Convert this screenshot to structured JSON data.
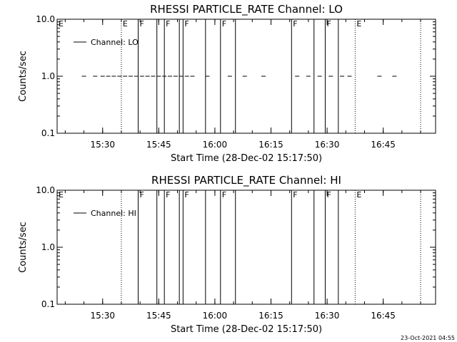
{
  "chart_data": [
    {
      "type": "line",
      "title": "RHESSI PARTICLE_RATE Channel: LO",
      "xlabel": "Start Time (28-Dec-02 15:17:50)",
      "ylabel": "Counts/sec",
      "yscale": "log",
      "ylim": [
        0.1,
        10.0
      ],
      "xlim": [
        "15:17:50",
        "16:59:00"
      ],
      "y_ticks": [
        "0.1",
        "1.0",
        "10.0"
      ],
      "x_ticks": [
        "15:30",
        "15:45",
        "16:00",
        "16:15",
        "16:30",
        "16:45"
      ],
      "grid": false,
      "legend": {
        "position": "top-left",
        "entries": [
          "Channel: LO"
        ]
      },
      "series": [
        {
          "name": "Channel: LO",
          "points": [
            {
              "x": "15:25:00",
              "y": 1.0
            },
            {
              "x": "15:28:00",
              "y": 1.0
            },
            {
              "x": "15:30:00",
              "y": 1.0
            },
            {
              "x": "15:31:30",
              "y": 1.0
            },
            {
              "x": "15:33:00",
              "y": 1.0
            },
            {
              "x": "15:34:30",
              "y": 1.0
            },
            {
              "x": "15:36:00",
              "y": 1.0
            },
            {
              "x": "15:37:30",
              "y": 1.0
            },
            {
              "x": "15:39:00",
              "y": 1.0
            },
            {
              "x": "15:40:30",
              "y": 1.0
            },
            {
              "x": "15:42:00",
              "y": 1.0
            },
            {
              "x": "15:43:30",
              "y": 1.0
            },
            {
              "x": "15:45:00",
              "y": 1.0
            },
            {
              "x": "15:46:30",
              "y": 1.0
            },
            {
              "x": "15:48:00",
              "y": 1.0
            },
            {
              "x": "15:49:30",
              "y": 1.0
            },
            {
              "x": "15:51:00",
              "y": 1.0
            },
            {
              "x": "15:52:30",
              "y": 1.0
            },
            {
              "x": "15:54:00",
              "y": 1.0
            },
            {
              "x": "15:58:00",
              "y": 1.0
            },
            {
              "x": "16:04:00",
              "y": 1.0
            },
            {
              "x": "16:08:00",
              "y": 1.0
            },
            {
              "x": "16:13:00",
              "y": 1.0
            },
            {
              "x": "16:22:00",
              "y": 1.0
            },
            {
              "x": "16:25:00",
              "y": 1.0
            },
            {
              "x": "16:28:00",
              "y": 1.0
            },
            {
              "x": "16:31:00",
              "y": 1.0
            },
            {
              "x": "16:34:00",
              "y": 1.0
            },
            {
              "x": "16:36:00",
              "y": 1.0
            },
            {
              "x": "16:44:00",
              "y": 1.0
            },
            {
              "x": "16:48:00",
              "y": 1.0
            }
          ]
        }
      ],
      "markers": [
        {
          "time": "15:35:00",
          "style": "dotted",
          "label": "E"
        },
        {
          "time": "15:39:30",
          "style": "solid",
          "label": "F"
        },
        {
          "time": "15:44:30",
          "style": "solid",
          "label": ""
        },
        {
          "time": "15:46:30",
          "style": "solid",
          "label": "F"
        },
        {
          "time": "15:50:30",
          "style": "solid",
          "label": ""
        },
        {
          "time": "15:51:30",
          "style": "solid",
          "label": "F"
        },
        {
          "time": "15:57:30",
          "style": "solid",
          "label": ""
        },
        {
          "time": "16:01:30",
          "style": "solid",
          "label": "F"
        },
        {
          "time": "16:05:30",
          "style": "solid",
          "label": ""
        },
        {
          "time": "16:20:30",
          "style": "solid",
          "label": "F"
        },
        {
          "time": "16:26:30",
          "style": "solid",
          "label": ""
        },
        {
          "time": "16:29:30",
          "style": "solid",
          "label": "F"
        },
        {
          "time": "16:33:00",
          "style": "solid",
          "label": ""
        },
        {
          "time": "16:37:30",
          "style": "dotted",
          "label": "E"
        },
        {
          "time": "16:55:00",
          "style": "dotted",
          "label": ""
        }
      ],
      "corner_label": "E"
    },
    {
      "type": "line",
      "title": "RHESSI PARTICLE_RATE Channel: HI",
      "xlabel": "Start Time (28-Dec-02 15:17:50)",
      "ylabel": "Counts/sec",
      "yscale": "log",
      "ylim": [
        0.1,
        10.0
      ],
      "xlim": [
        "15:17:50",
        "16:59:00"
      ],
      "y_ticks": [
        "0.1",
        "1.0",
        "10.0"
      ],
      "x_ticks": [
        "15:30",
        "15:45",
        "16:00",
        "16:15",
        "16:30",
        "16:45"
      ],
      "grid": false,
      "legend": {
        "position": "top-left",
        "entries": [
          "Channel: HI"
        ]
      },
      "series": [
        {
          "name": "Channel: HI",
          "points": []
        }
      ],
      "markers": [
        {
          "time": "15:35:00",
          "style": "dotted",
          "label": ""
        },
        {
          "time": "15:39:30",
          "style": "solid",
          "label": "F"
        },
        {
          "time": "15:44:30",
          "style": "solid",
          "label": ""
        },
        {
          "time": "15:46:30",
          "style": "solid",
          "label": "F"
        },
        {
          "time": "15:50:30",
          "style": "solid",
          "label": ""
        },
        {
          "time": "15:51:30",
          "style": "solid",
          "label": "F"
        },
        {
          "time": "15:57:30",
          "style": "solid",
          "label": ""
        },
        {
          "time": "16:01:30",
          "style": "solid",
          "label": "F"
        },
        {
          "time": "16:05:30",
          "style": "solid",
          "label": ""
        },
        {
          "time": "16:20:30",
          "style": "solid",
          "label": "F"
        },
        {
          "time": "16:26:30",
          "style": "solid",
          "label": ""
        },
        {
          "time": "16:29:30",
          "style": "solid",
          "label": "F"
        },
        {
          "time": "16:33:00",
          "style": "solid",
          "label": ""
        },
        {
          "time": "16:37:30",
          "style": "dotted",
          "label": "E"
        },
        {
          "time": "16:55:00",
          "style": "dotted",
          "label": ""
        }
      ],
      "corner_label": "E"
    }
  ],
  "timestamp": "23-Oct-2021 04:55"
}
